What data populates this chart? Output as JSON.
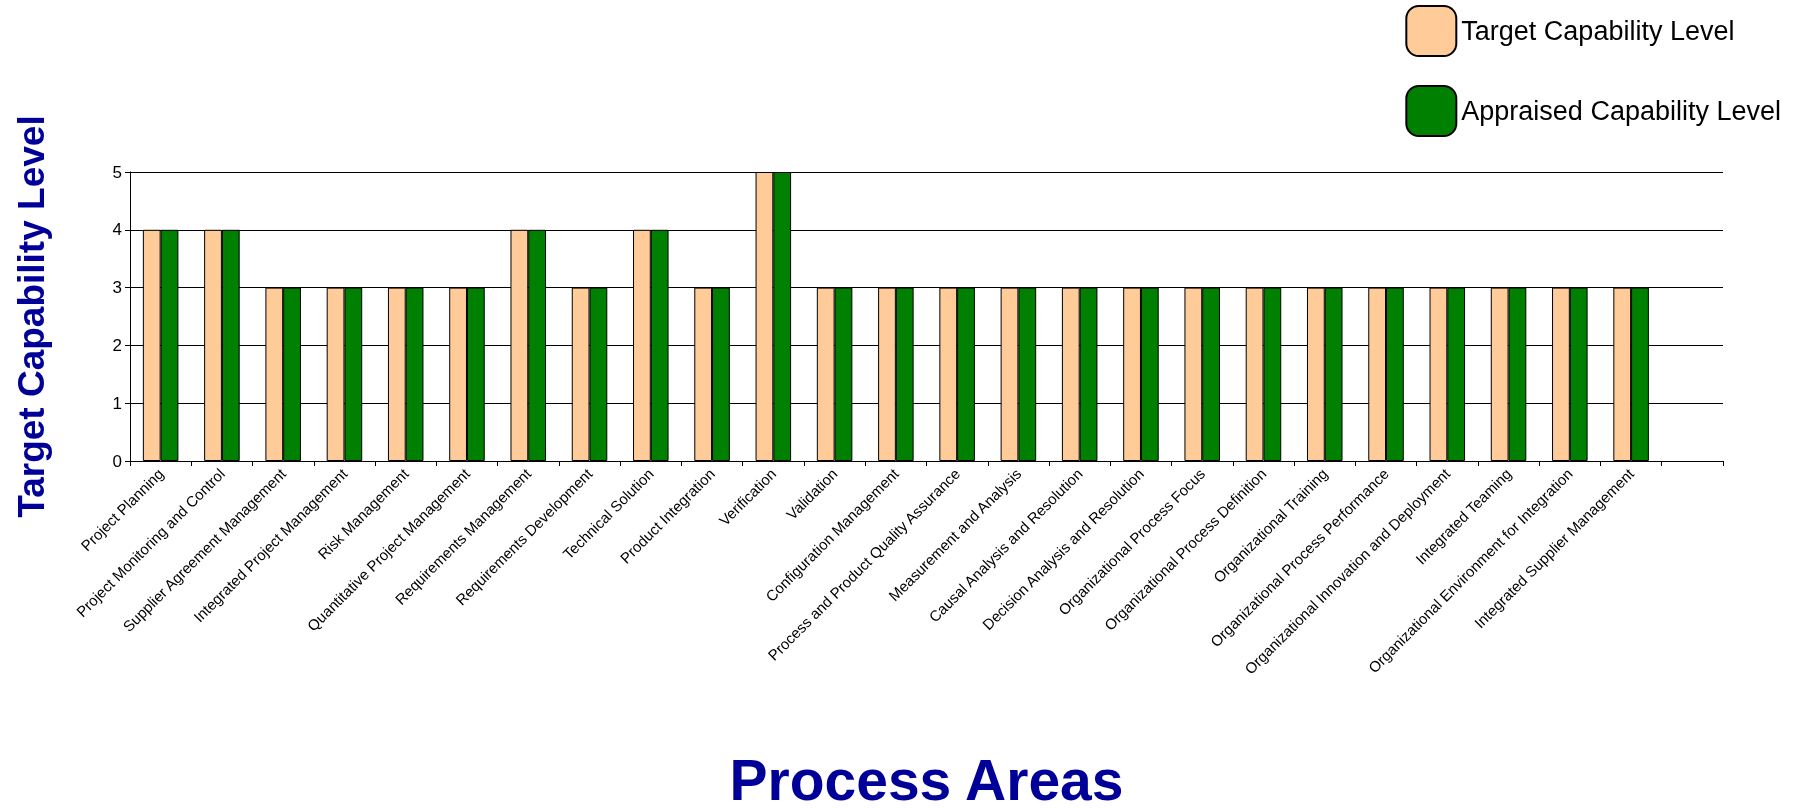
{
  "chart_data": {
    "type": "bar",
    "ylabel": "Target Capability Level",
    "xlabel": "Process Areas",
    "categories": [
      "Project Planning",
      "Project Monitoring and Control",
      "Supplier Agreement Management",
      "Integrated Project Management",
      "Risk Management",
      "Quantitative Project Management",
      "Requirements Management",
      "Requirements Development",
      "Technical Solution",
      "Product Integration",
      "Verification",
      "Validation",
      "Configuration Management",
      "Process and Product Quality Assurance",
      "Measurement and Analysis",
      "Causal Analysis and Resolution",
      "Decision Analysis and Resolution",
      "Organizational Process Focus",
      "Organizational Process Definition",
      "Organizational Training",
      "Organizational Process Performance",
      "Organizational Innovation and Deployment",
      "Integrated Teaming",
      "Organizational Environment for Integration",
      "Integrated Supplier Management",
      null
    ],
    "series": [
      {
        "name": "Target Capability Level",
        "color": "#ffcc99",
        "values": [
          4,
          4,
          3,
          3,
          3,
          3,
          4,
          3,
          4,
          3,
          5,
          3,
          3,
          3,
          3,
          3,
          3,
          3,
          3,
          3,
          3,
          3,
          3,
          3,
          3,
          null
        ]
      },
      {
        "name": "Appraised Capability Level",
        "color": "#008000",
        "values": [
          4,
          4,
          3,
          3,
          3,
          3,
          4,
          3,
          4,
          3,
          5,
          3,
          3,
          3,
          3,
          3,
          3,
          3,
          3,
          3,
          3,
          3,
          3,
          3,
          3,
          null
        ]
      }
    ],
    "ylim": [
      0,
      5
    ],
    "yticks": [
      0,
      1,
      2,
      3,
      4,
      5
    ],
    "grid": "y",
    "legend": "top right"
  }
}
